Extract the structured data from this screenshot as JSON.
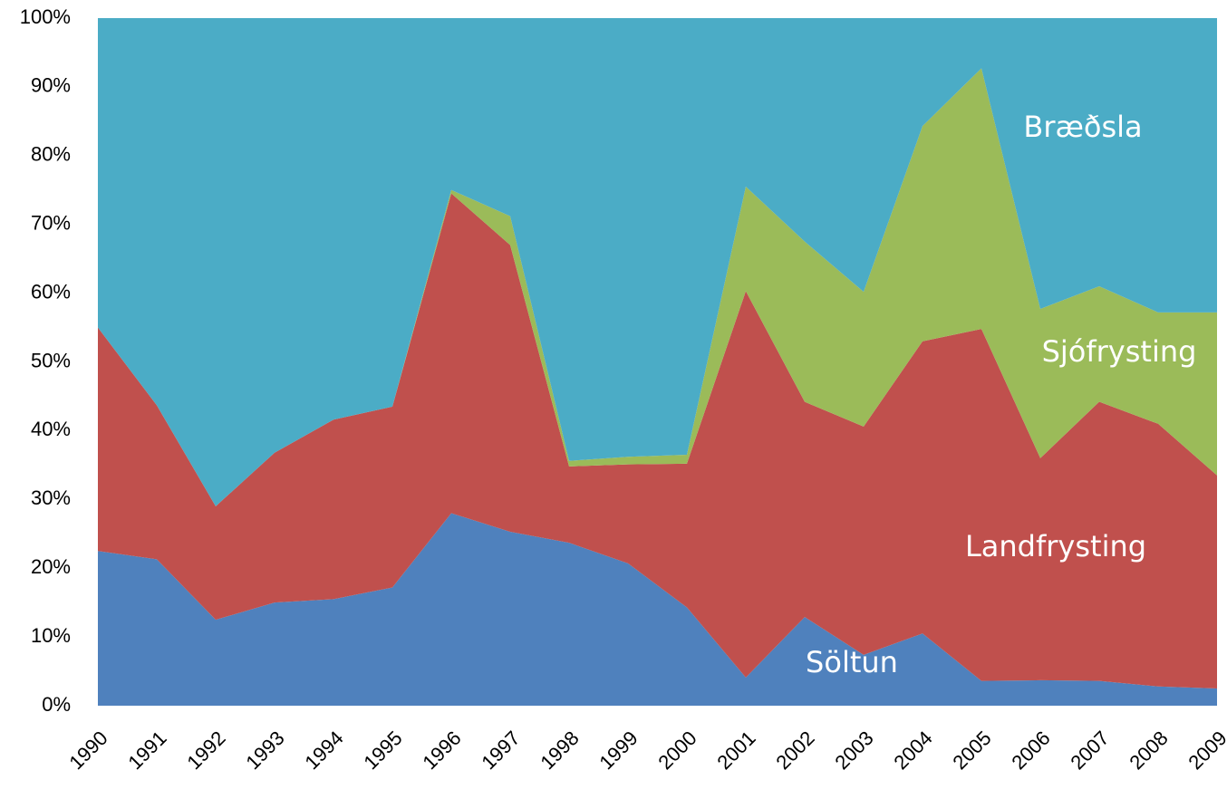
{
  "chart_data": {
    "type": "stacked_area",
    "categories": [
      "1990",
      "1991",
      "1992",
      "1993",
      "1994",
      "1995",
      "1996",
      "1997",
      "1998",
      "1999",
      "2000",
      "2001",
      "2002",
      "2003",
      "2004",
      "2005",
      "2006",
      "2007",
      "2008",
      "2009"
    ],
    "series": [
      {
        "name": "Söltun",
        "color": "#4f81bd",
        "values": [
          22.5,
          21.3,
          12.5,
          15,
          15.5,
          17.2,
          28,
          25.3,
          23.7,
          20.7,
          14.3,
          4.1,
          12.9,
          7.4,
          10.5,
          3.6,
          3.7,
          3.6,
          2.8,
          2.5
        ]
      },
      {
        "name": "Landfrysting",
        "color": "#c0504d",
        "values": [
          32.5,
          22.4,
          16.5,
          21.8,
          26.1,
          26.3,
          46.5,
          41.7,
          11.1,
          14.4,
          20.9,
          56.2,
          31.3,
          33.2,
          42.5,
          51.2,
          32.3,
          40.6,
          38.2,
          31
        ]
      },
      {
        "name": "Sjófrysting",
        "color": "#9bbb59",
        "values": [
          0,
          0,
          0,
          0,
          0,
          0,
          0.5,
          4.2,
          0.8,
          1.1,
          1.3,
          15.2,
          23.3,
          19.6,
          31.3,
          37.9,
          21.7,
          16.8,
          16.2,
          23.7
        ]
      },
      {
        "name": "Bræðsla",
        "color": "#4bacc6",
        "values": [
          45,
          56.3,
          71,
          63.2,
          58.4,
          56.5,
          25,
          28.8,
          64.4,
          63.8,
          63.5,
          24.5,
          32.5,
          39.8,
          15.7,
          7.3,
          42.3,
          39,
          42.8,
          42.8
        ]
      }
    ],
    "ylim": [
      0,
      100
    ],
    "yticks": [
      {
        "value": 0,
        "label": "0%"
      },
      {
        "value": 10,
        "label": "10%"
      },
      {
        "value": 20,
        "label": "20%"
      },
      {
        "value": 30,
        "label": "30%"
      },
      {
        "value": 40,
        "label": "40%"
      },
      {
        "value": 50,
        "label": "50%"
      },
      {
        "value": 60,
        "label": "60%"
      },
      {
        "value": 70,
        "label": "70%"
      },
      {
        "value": 80,
        "label": "80%"
      },
      {
        "value": 90,
        "label": "90%"
      },
      {
        "value": 100,
        "label": "100%"
      }
    ],
    "grid": false
  }
}
